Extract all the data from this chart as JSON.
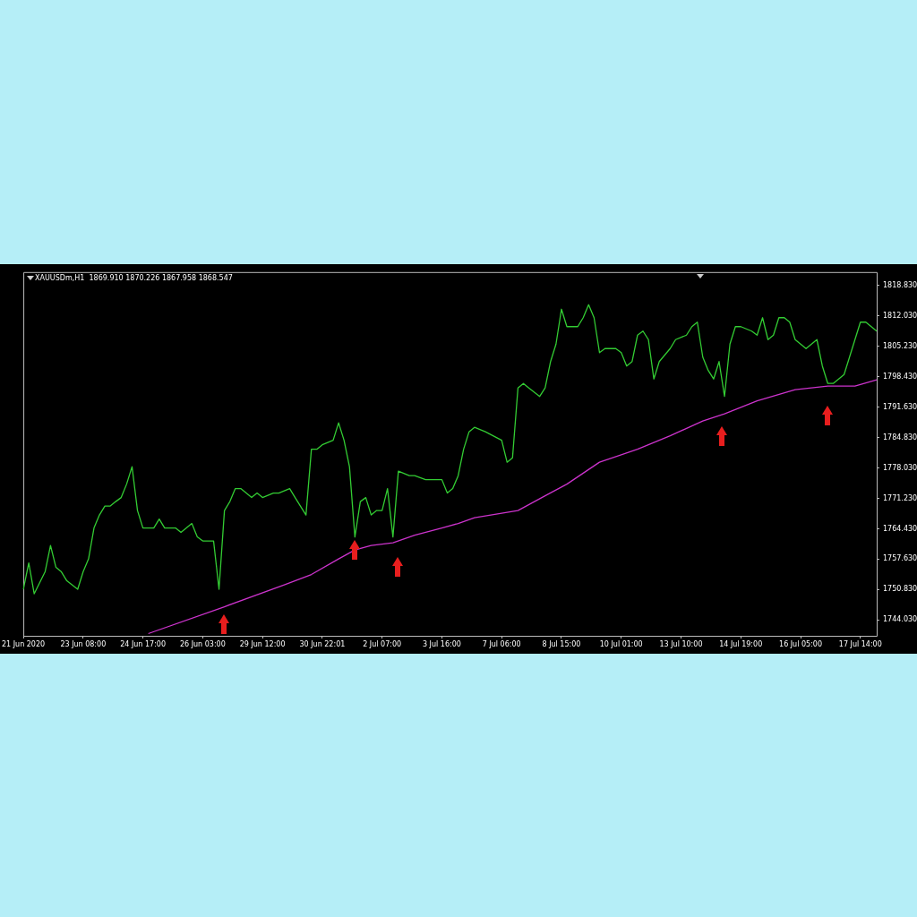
{
  "chart_data": {
    "type": "line",
    "title": "XAUUSDm,H1  1869.910 1870.226 1867.958 1868.547",
    "marker": "none",
    "grid": false,
    "legend": false,
    "ylim": [
      1740.5,
      1821.8
    ],
    "yticks": [
      {
        "value": 1744.03,
        "label": "1744.030"
      },
      {
        "value": 1750.83,
        "label": "1750.830"
      },
      {
        "value": 1757.63,
        "label": "1757.630"
      },
      {
        "value": 1764.43,
        "label": "1764.430"
      },
      {
        "value": 1771.23,
        "label": "1771.230"
      },
      {
        "value": 1778.03,
        "label": "1778.030"
      },
      {
        "value": 1784.83,
        "label": "1784.830"
      },
      {
        "value": 1791.63,
        "label": "1791.630"
      },
      {
        "value": 1798.43,
        "label": "1798.430"
      },
      {
        "value": 1805.23,
        "label": "1805.230"
      },
      {
        "value": 1812.03,
        "label": "1812.030"
      },
      {
        "value": 1818.83,
        "label": "1818.830"
      }
    ],
    "categories": [
      "21 Jun 2020",
      null,
      null,
      null,
      null,
      null,
      null,
      null,
      null,
      null,
      null,
      "23 Jun 08:00",
      null,
      null,
      null,
      null,
      null,
      null,
      null,
      null,
      null,
      null,
      "24 Jun 17:00",
      null,
      null,
      null,
      null,
      null,
      null,
      null,
      null,
      null,
      null,
      "26 Jun 03:00",
      null,
      null,
      null,
      null,
      null,
      null,
      null,
      null,
      null,
      null,
      "29 Jun 12:00",
      null,
      null,
      null,
      null,
      null,
      null,
      null,
      null,
      null,
      null,
      "30 Jun 22:01",
      null,
      null,
      null,
      null,
      null,
      null,
      null,
      null,
      null,
      null,
      "2 Jul 07:00",
      null,
      null,
      null,
      null,
      null,
      null,
      null,
      null,
      null,
      null,
      "3 Jul 16:00",
      null,
      null,
      null,
      null,
      null,
      null,
      null,
      null,
      null,
      null,
      "7 Jul 06:00",
      null,
      null,
      null,
      null,
      null,
      null,
      null,
      null,
      null,
      null,
      "8 Jul 15:00",
      null,
      null,
      null,
      null,
      null,
      null,
      null,
      null,
      null,
      null,
      "10 Jul 01:00",
      null,
      null,
      null,
      null,
      null,
      null,
      null,
      null,
      null,
      null,
      "13 Jul 10:00",
      null,
      null,
      null,
      null,
      null,
      null,
      null,
      null,
      null,
      null,
      "14 Jul 19:00",
      null,
      null,
      null,
      null,
      null,
      null,
      null,
      null,
      null,
      null,
      "16 Jul 05:00",
      null,
      null,
      null,
      null,
      null,
      null,
      null,
      null,
      null,
      null,
      "17 Jul 14:00",
      null,
      null,
      null
    ],
    "series": [
      {
        "color": "#33cc33",
        "values": [
          1750.9,
          1756.8,
          1749.9,
          null,
          1754.8,
          1760.7,
          1755.8,
          1754.8,
          1752.8,
          null,
          1750.9,
          1754.8,
          1757.7,
          1764.6,
          1767.5,
          1769.5,
          1769.5,
          1770.5,
          1771.4,
          1774.4,
          1778.3,
          1768.5,
          1764.6,
          null,
          1764.6,
          1766.6,
          1764.6,
          null,
          1764.6,
          1763.6,
          1764.6,
          1765.6,
          1762.6,
          1761.7,
          1761.7,
          1761.7,
          1750.9,
          1768.5,
          1770.5,
          1773.4,
          1773.4,
          null,
          1771.4,
          1772.4,
          1771.4,
          null,
          1772.4,
          1772.4,
          null,
          1773.4,
          1771.4,
          null,
          1767.5,
          1782.2,
          1782.2,
          1783.2,
          null,
          1784.2,
          1788.1,
          1784.2,
          1778.3,
          1762.6,
          1770.5,
          1771.4,
          1767.5,
          1768.5,
          1768.5,
          1773.4,
          1762.6,
          1777.3,
          null,
          1776.3,
          1776.3,
          null,
          1775.4,
          1775.4,
          null,
          1775.4,
          1772.4,
          1773.4,
          1776.3,
          1782.2,
          1786.1,
          1787.1,
          null,
          1786.1,
          null,
          null,
          1784.2,
          1779.3,
          1780.3,
          1795.9,
          1796.9,
          1795.9,
          null,
          1794.0,
          1795.9,
          1801.8,
          1805.7,
          1813.5,
          1809.6,
          null,
          1809.6,
          1811.6,
          1814.5,
          1811.6,
          1803.8,
          1804.7,
          null,
          1804.7,
          1803.8,
          1800.8,
          1801.8,
          1807.7,
          1808.6,
          1806.7,
          1797.9,
          1801.8,
          null,
          1804.7,
          1806.7,
          null,
          1807.7,
          1809.6,
          1810.6,
          1802.8,
          1799.8,
          1797.9,
          1801.8,
          1794.0,
          1805.7,
          1809.6,
          1809.6,
          null,
          1808.6,
          1807.7,
          1811.6,
          1806.7,
          1807.7,
          1811.6,
          1811.6,
          1810.6,
          1806.7,
          null,
          1804.7,
          1805.7,
          1806.7,
          1800.8,
          1796.9,
          1796.9,
          1797.9,
          1798.9,
          1802.8,
          1806.7,
          1810.6,
          1810.6,
          1809.6,
          1808.6
        ]
      },
      {
        "color": "#cc33cc",
        "values": [
          null,
          null,
          null,
          null,
          null,
          null,
          null,
          null,
          null,
          null,
          null,
          null,
          null,
          null,
          null,
          null,
          null,
          null,
          null,
          null,
          null,
          null,
          null,
          1741.0,
          null,
          null,
          null,
          null,
          null,
          null,
          null,
          null,
          null,
          null,
          null,
          null,
          null,
          1747.0,
          null,
          null,
          null,
          null,
          null,
          null,
          null,
          null,
          null,
          null,
          1751.9,
          null,
          null,
          null,
          null,
          1754.2,
          null,
          null,
          null,
          null,
          1757.7,
          null,
          null,
          1759.7,
          null,
          null,
          1760.7,
          null,
          null,
          null,
          1761.3,
          null,
          null,
          null,
          1763.0,
          null,
          null,
          null,
          null,
          1764.6,
          null,
          null,
          1765.6,
          null,
          null,
          1766.9,
          null,
          null,
          null,
          null,
          null,
          null,
          null,
          1768.5,
          null,
          null,
          null,
          null,
          1771.8,
          null,
          null,
          null,
          1774.4,
          null,
          null,
          null,
          null,
          null,
          1779.3,
          null,
          null,
          null,
          null,
          null,
          null,
          1782.2,
          null,
          null,
          null,
          null,
          null,
          1785.2,
          null,
          null,
          null,
          null,
          null,
          1788.5,
          null,
          null,
          null,
          1790.1,
          null,
          null,
          null,
          null,
          null,
          1793.0,
          null,
          null,
          null,
          null,
          null,
          null,
          1795.5,
          null,
          null,
          null,
          null,
          null,
          1796.3,
          null,
          null,
          null,
          null,
          1796.3,
          null,
          null,
          null,
          1797.7
        ]
      }
    ]
  }
}
